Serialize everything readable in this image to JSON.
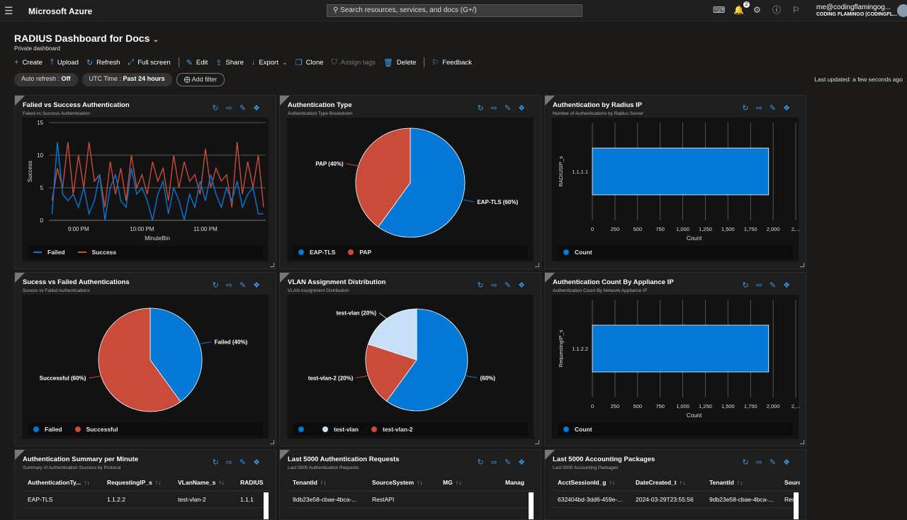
{
  "topbar": {
    "brand": "Microsoft Azure",
    "search_placeholder": "Search resources, services, and docs (G+/)",
    "notifications": "2",
    "user_email": "me@codingflamingog...",
    "user_tenant": "CODING FLAMINGO (CODINGFL..."
  },
  "dashboard": {
    "title": "RADIUS Dashboard for Docs",
    "subtitle": "Private dashboard",
    "last_updated": "Last updated: a few seconds ago"
  },
  "toolbar": [
    {
      "label": "Create",
      "icon": "plus-icon"
    },
    {
      "label": "Upload",
      "icon": "upload-icon"
    },
    {
      "label": "Refresh",
      "icon": "refresh-icon"
    },
    {
      "label": "Full screen",
      "icon": "fullscreen-icon"
    },
    {
      "label": "Edit",
      "icon": "pencil-icon"
    },
    {
      "label": "Share",
      "icon": "share-icon"
    },
    {
      "label": "Export",
      "icon": "download-icon"
    },
    {
      "label": "Clone",
      "icon": "clone-icon"
    },
    {
      "label": "Assign tags",
      "icon": "tag-icon",
      "disabled": true
    },
    {
      "label": "Delete",
      "icon": "trash-icon"
    },
    {
      "label": "Feedback",
      "icon": "feedback-icon"
    }
  ],
  "filters": {
    "auto_refresh_label": "Auto refresh : ",
    "auto_refresh_value": "Off",
    "time_label": "UTC Time : ",
    "time_value": "Past 24 hours",
    "add_filter": "Add filter"
  },
  "colors": {
    "blue": "#0078d4",
    "red": "#c94b3a",
    "light": "#c7e0f8",
    "accent": "#3a96e6"
  },
  "panels": {
    "p1": {
      "title": "Falied vs Success Authentication",
      "subtitle": "Falied vs Success Authentication"
    },
    "p2": {
      "title": "Authentication Type",
      "subtitle": "Authentication Type Breakdown"
    },
    "p3": {
      "title": "Authentication by Radius IP",
      "subtitle": "Number of Authentications by Radius Server"
    },
    "p4": {
      "title": "Sucess vs Failed Authentications",
      "subtitle": "Sucess vs Failed Authentications"
    },
    "p5": {
      "title": "VLAN Assignment Distribution",
      "subtitle": "VLAN Assignment Distribution"
    },
    "p6": {
      "title": "Authentication Count By Appliance IP",
      "subtitle": "Authentication Count By Network Appliance IP"
    },
    "p7": {
      "title": "Authentication Summary per Minute",
      "subtitle": "Summary of Authentication Success by Protocol",
      "columns": [
        "AuthenticationTy...",
        "RequestingIP_s",
        "VLanName_s",
        "RADIUS"
      ],
      "rows": [
        [
          "EAP-TLS",
          "1.1.2.2",
          "test-vlan-2",
          "1.1.1"
        ]
      ]
    },
    "p8": {
      "title": "Last 5000 Authentication Requests",
      "subtitle": "Last 5000 Authentication Requests",
      "columns": [
        "TenantId",
        "SourceSystem",
        "MG",
        "Manag"
      ],
      "rows": [
        [
          "9db23e58-cbae-4bca-...",
          "RestAPI",
          "",
          ""
        ]
      ]
    },
    "p9": {
      "title": "Last 5000 Accounting Packages",
      "subtitle": "Last 5000 Accounting Packages",
      "columns": [
        "AcctSessionId_g",
        "DateCreated_t",
        "TenantId",
        "Source"
      ],
      "rows": [
        [
          "632404bd-3dd6-459e-...",
          "2024-03-29T23:55:56",
          "9db23e58-cbae-4bca-...",
          "Rest"
        ]
      ]
    }
  },
  "chart_data": [
    {
      "type": "line",
      "xlabel": "MinuteBin",
      "ylabel": "Success",
      "ylim": [
        0,
        15
      ],
      "yticks": [
        "0",
        "5",
        "10",
        "15"
      ],
      "xticks": [
        "9:00 PM",
        "10:00 PM",
        "11:00 PM"
      ],
      "grid": true,
      "legend": "bottom",
      "x": [
        "20:35",
        "20:40",
        "20:45",
        "20:50",
        "20:55",
        "21:00",
        "21:05",
        "21:10",
        "21:15",
        "21:20",
        "21:25",
        "21:30",
        "21:35",
        "21:40",
        "21:45",
        "21:50",
        "21:55",
        "22:00",
        "22:05",
        "22:10",
        "22:15",
        "22:20",
        "22:25",
        "22:30",
        "22:35",
        "22:40",
        "22:45",
        "22:50",
        "22:55",
        "23:00",
        "23:05",
        "23:10",
        "23:15",
        "23:20",
        "23:25",
        "23:30",
        "23:35",
        "23:40",
        "23:45",
        "23:50",
        "23:55"
      ],
      "series": [
        {
          "name": "Failed",
          "color": "#0078d4",
          "values": [
            1,
            12,
            4,
            3,
            4,
            2,
            5,
            1,
            3,
            7,
            0,
            5,
            7,
            3,
            2,
            8,
            4,
            5,
            3,
            0,
            4,
            6,
            1,
            5,
            3,
            0,
            4,
            2,
            6,
            3,
            7,
            4,
            2,
            5,
            3,
            6,
            2,
            4,
            5,
            1,
            1
          ]
        },
        {
          "name": "Success",
          "color": "#c94b3a",
          "values": [
            3,
            8,
            5,
            12,
            4,
            10,
            5,
            12,
            6,
            7,
            2,
            9,
            4,
            8,
            3,
            10,
            5,
            7,
            4,
            9,
            6,
            8,
            3,
            10,
            5,
            9,
            6,
            7,
            4,
            11,
            5,
            8,
            6,
            7,
            2,
            12,
            4,
            9,
            5,
            10,
            2
          ]
        }
      ]
    },
    {
      "type": "pie",
      "slices": [
        {
          "name": "EAP-TLS",
          "label": "EAP-TLS (60%)",
          "value": 60,
          "color": "#0078d4"
        },
        {
          "name": "PAP",
          "label": "PAP (40%)",
          "value": 40,
          "color": "#c94b3a"
        }
      ],
      "legend": "bottom"
    },
    {
      "type": "bar",
      "orientation": "horizontal",
      "categories": [
        "1.1.1.1"
      ],
      "values": [
        1950
      ],
      "xlabel": "Count",
      "ylabel": "RADIUSIP_s",
      "xlim": [
        0,
        2250
      ],
      "xticks": [
        "0",
        "250",
        "500",
        "750",
        "1,000",
        "1,250",
        "1,500",
        "1,750",
        "2,000",
        "2,..."
      ],
      "series_name": "Count",
      "legend": "bottom"
    },
    {
      "type": "pie",
      "slices": [
        {
          "name": "Failed",
          "label": "Failed (40%)",
          "value": 40,
          "color": "#0078d4"
        },
        {
          "name": "Successful",
          "label": "Successful (60%)",
          "value": 60,
          "color": "#c94b3a"
        }
      ],
      "legend": "bottom"
    },
    {
      "type": "pie",
      "slices": [
        {
          "name": "",
          "label": "(60%)",
          "value": 60,
          "color": "#0078d4"
        },
        {
          "name": "test-vlan-2",
          "label": "test-vlan-2 (20%)",
          "value": 20,
          "color": "#c94b3a"
        },
        {
          "name": "test-vlan",
          "label": "test-vlan (20%)",
          "value": 20,
          "color": "#c7e0f8"
        }
      ],
      "legend_order": [
        "",
        "test-vlan",
        "test-vlan-2"
      ],
      "legend": "bottom"
    },
    {
      "type": "bar",
      "orientation": "horizontal",
      "categories": [
        "1.1.2.2"
      ],
      "values": [
        1950
      ],
      "xlabel": "Count",
      "ylabel": "RequestingIP_s",
      "xlim": [
        0,
        2250
      ],
      "xticks": [
        "0",
        "250",
        "500",
        "750",
        "1,000",
        "1,250",
        "1,500",
        "1,750",
        "2,000",
        "2,..."
      ],
      "series_name": "Count",
      "legend": "bottom"
    }
  ]
}
